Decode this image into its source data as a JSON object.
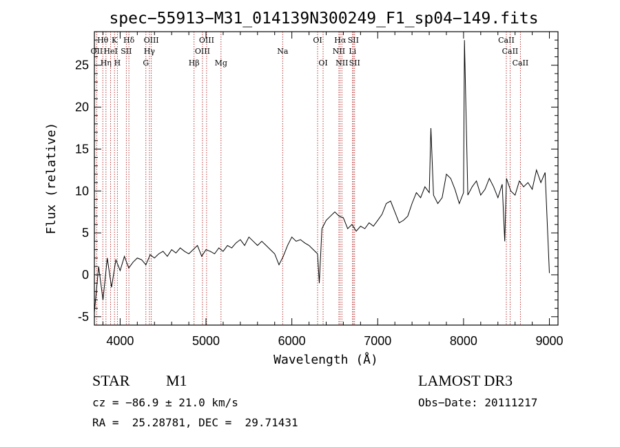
{
  "chart_data": {
    "type": "line",
    "title": "spec−55913−M31_014139N300249_F1_sp04−149.fits",
    "xlabel": "Wavelength (Å)",
    "ylabel": "Flux (relative)",
    "xlim": [
      3700,
      9100
    ],
    "ylim": [
      -6,
      29
    ],
    "xticks": [
      4000,
      5000,
      6000,
      7000,
      8000,
      9000
    ],
    "yticks": [
      -5,
      0,
      5,
      10,
      15,
      20,
      25
    ],
    "series": [
      {
        "name": "spectrum",
        "x": [
          3700,
          3750,
          3800,
          3850,
          3900,
          3950,
          4000,
          4050,
          4100,
          4150,
          4200,
          4250,
          4300,
          4350,
          4400,
          4450,
          4500,
          4550,
          4600,
          4650,
          4700,
          4750,
          4800,
          4850,
          4900,
          4950,
          5000,
          5050,
          5100,
          5150,
          5200,
          5250,
          5300,
          5350,
          5400,
          5450,
          5500,
          5550,
          5600,
          5650,
          5700,
          5750,
          5800,
          5850,
          5900,
          5950,
          6000,
          6050,
          6100,
          6150,
          6200,
          6250,
          6300,
          6320,
          6350,
          6400,
          6450,
          6500,
          6550,
          6600,
          6650,
          6700,
          6750,
          6800,
          6850,
          6900,
          6950,
          7000,
          7050,
          7100,
          7150,
          7200,
          7250,
          7300,
          7350,
          7400,
          7450,
          7500,
          7550,
          7600,
          7620,
          7650,
          7700,
          7750,
          7800,
          7850,
          7900,
          7950,
          8000,
          8010,
          8050,
          8100,
          8150,
          8200,
          8250,
          8300,
          8350,
          8400,
          8450,
          8480,
          8500,
          8550,
          8600,
          8650,
          8700,
          8750,
          8800,
          8850,
          8900,
          8950,
          9000
        ],
        "y": [
          -4.5,
          1.0,
          -3.0,
          2.0,
          -1.5,
          1.8,
          0.5,
          2.2,
          0.8,
          1.5,
          2.0,
          1.8,
          1.2,
          2.4,
          2.0,
          2.5,
          2.8,
          2.2,
          3.0,
          2.6,
          3.2,
          2.8,
          2.5,
          3.0,
          3.5,
          2.2,
          3.0,
          2.8,
          2.5,
          3.2,
          2.8,
          3.5,
          3.2,
          3.8,
          4.2,
          3.5,
          4.5,
          4.0,
          3.5,
          4.0,
          3.5,
          3.0,
          2.5,
          1.2,
          2.2,
          3.5,
          4.5,
          4.0,
          4.2,
          3.8,
          3.5,
          3.0,
          2.5,
          -1.0,
          5.5,
          6.5,
          7.0,
          7.5,
          7.0,
          6.8,
          5.5,
          6.0,
          5.2,
          5.8,
          5.5,
          6.2,
          5.8,
          6.5,
          7.2,
          8.5,
          8.8,
          7.5,
          6.2,
          6.5,
          7.0,
          8.5,
          9.8,
          9.2,
          10.5,
          9.8,
          17.5,
          9.5,
          8.5,
          9.2,
          12.0,
          11.5,
          10.2,
          8.5,
          9.8,
          28.0,
          9.5,
          10.5,
          11.2,
          9.5,
          10.2,
          11.5,
          10.5,
          9.2,
          10.8,
          4.0,
          11.5,
          10.0,
          9.5,
          11.2,
          10.5,
          11.0,
          10.2,
          12.5,
          11.0,
          12.2,
          0.2
        ]
      }
    ],
    "lines": [
      {
        "name": "Hθ",
        "x": 3798,
        "row": 1
      },
      {
        "name": "OII",
        "x": 3727,
        "row": 2
      },
      {
        "name": "Hη",
        "x": 3835,
        "row": 3
      },
      {
        "name": "HeI",
        "x": 3889,
        "row": 2
      },
      {
        "name": "K",
        "x": 3934,
        "row": 1
      },
      {
        "name": "H",
        "x": 3968,
        "row": 3
      },
      {
        "name": "SII",
        "x": 4072,
        "row": 2
      },
      {
        "name": "Hδ",
        "x": 4102,
        "row": 1
      },
      {
        "name": "G",
        "x": 4300,
        "row": 3
      },
      {
        "name": "OIII",
        "x": 4363,
        "row": 1
      },
      {
        "name": "Hγ",
        "x": 4341,
        "row": 2
      },
      {
        "name": "Hβ",
        "x": 4861,
        "row": 3
      },
      {
        "name": "OIII",
        "x": 4959,
        "row": 2
      },
      {
        "name": "OIII",
        "x": 5007,
        "row": 1
      },
      {
        "name": "Mg",
        "x": 5175,
        "row": 3
      },
      {
        "name": "Na",
        "x": 5893,
        "row": 2
      },
      {
        "name": "OI",
        "x": 6300,
        "row": 1
      },
      {
        "name": "OI",
        "x": 6364,
        "row": 3
      },
      {
        "name": "NII",
        "x": 6548,
        "row": 2
      },
      {
        "name": "Hα",
        "x": 6563,
        "row": 1
      },
      {
        "name": "NII",
        "x": 6583,
        "row": 3
      },
      {
        "name": "Li",
        "x": 6707,
        "row": 2
      },
      {
        "name": "SII",
        "x": 6716,
        "row": 1
      },
      {
        "name": "SII",
        "x": 6731,
        "row": 3
      },
      {
        "name": "CaII",
        "x": 8498,
        "row": 1
      },
      {
        "name": "CaII",
        "x": 8542,
        "row": 2
      },
      {
        "name": "CaII",
        "x": 8662,
        "row": 3
      }
    ]
  },
  "info": {
    "class": "STAR",
    "subclass": "M1",
    "survey": "LAMOST DR3",
    "cz": "cz = −86.9 ± 21.0 km/s",
    "obs_date": "Obs−Date: 20111217",
    "radec": "RA =  25.28781, DEC =  29.71431"
  }
}
